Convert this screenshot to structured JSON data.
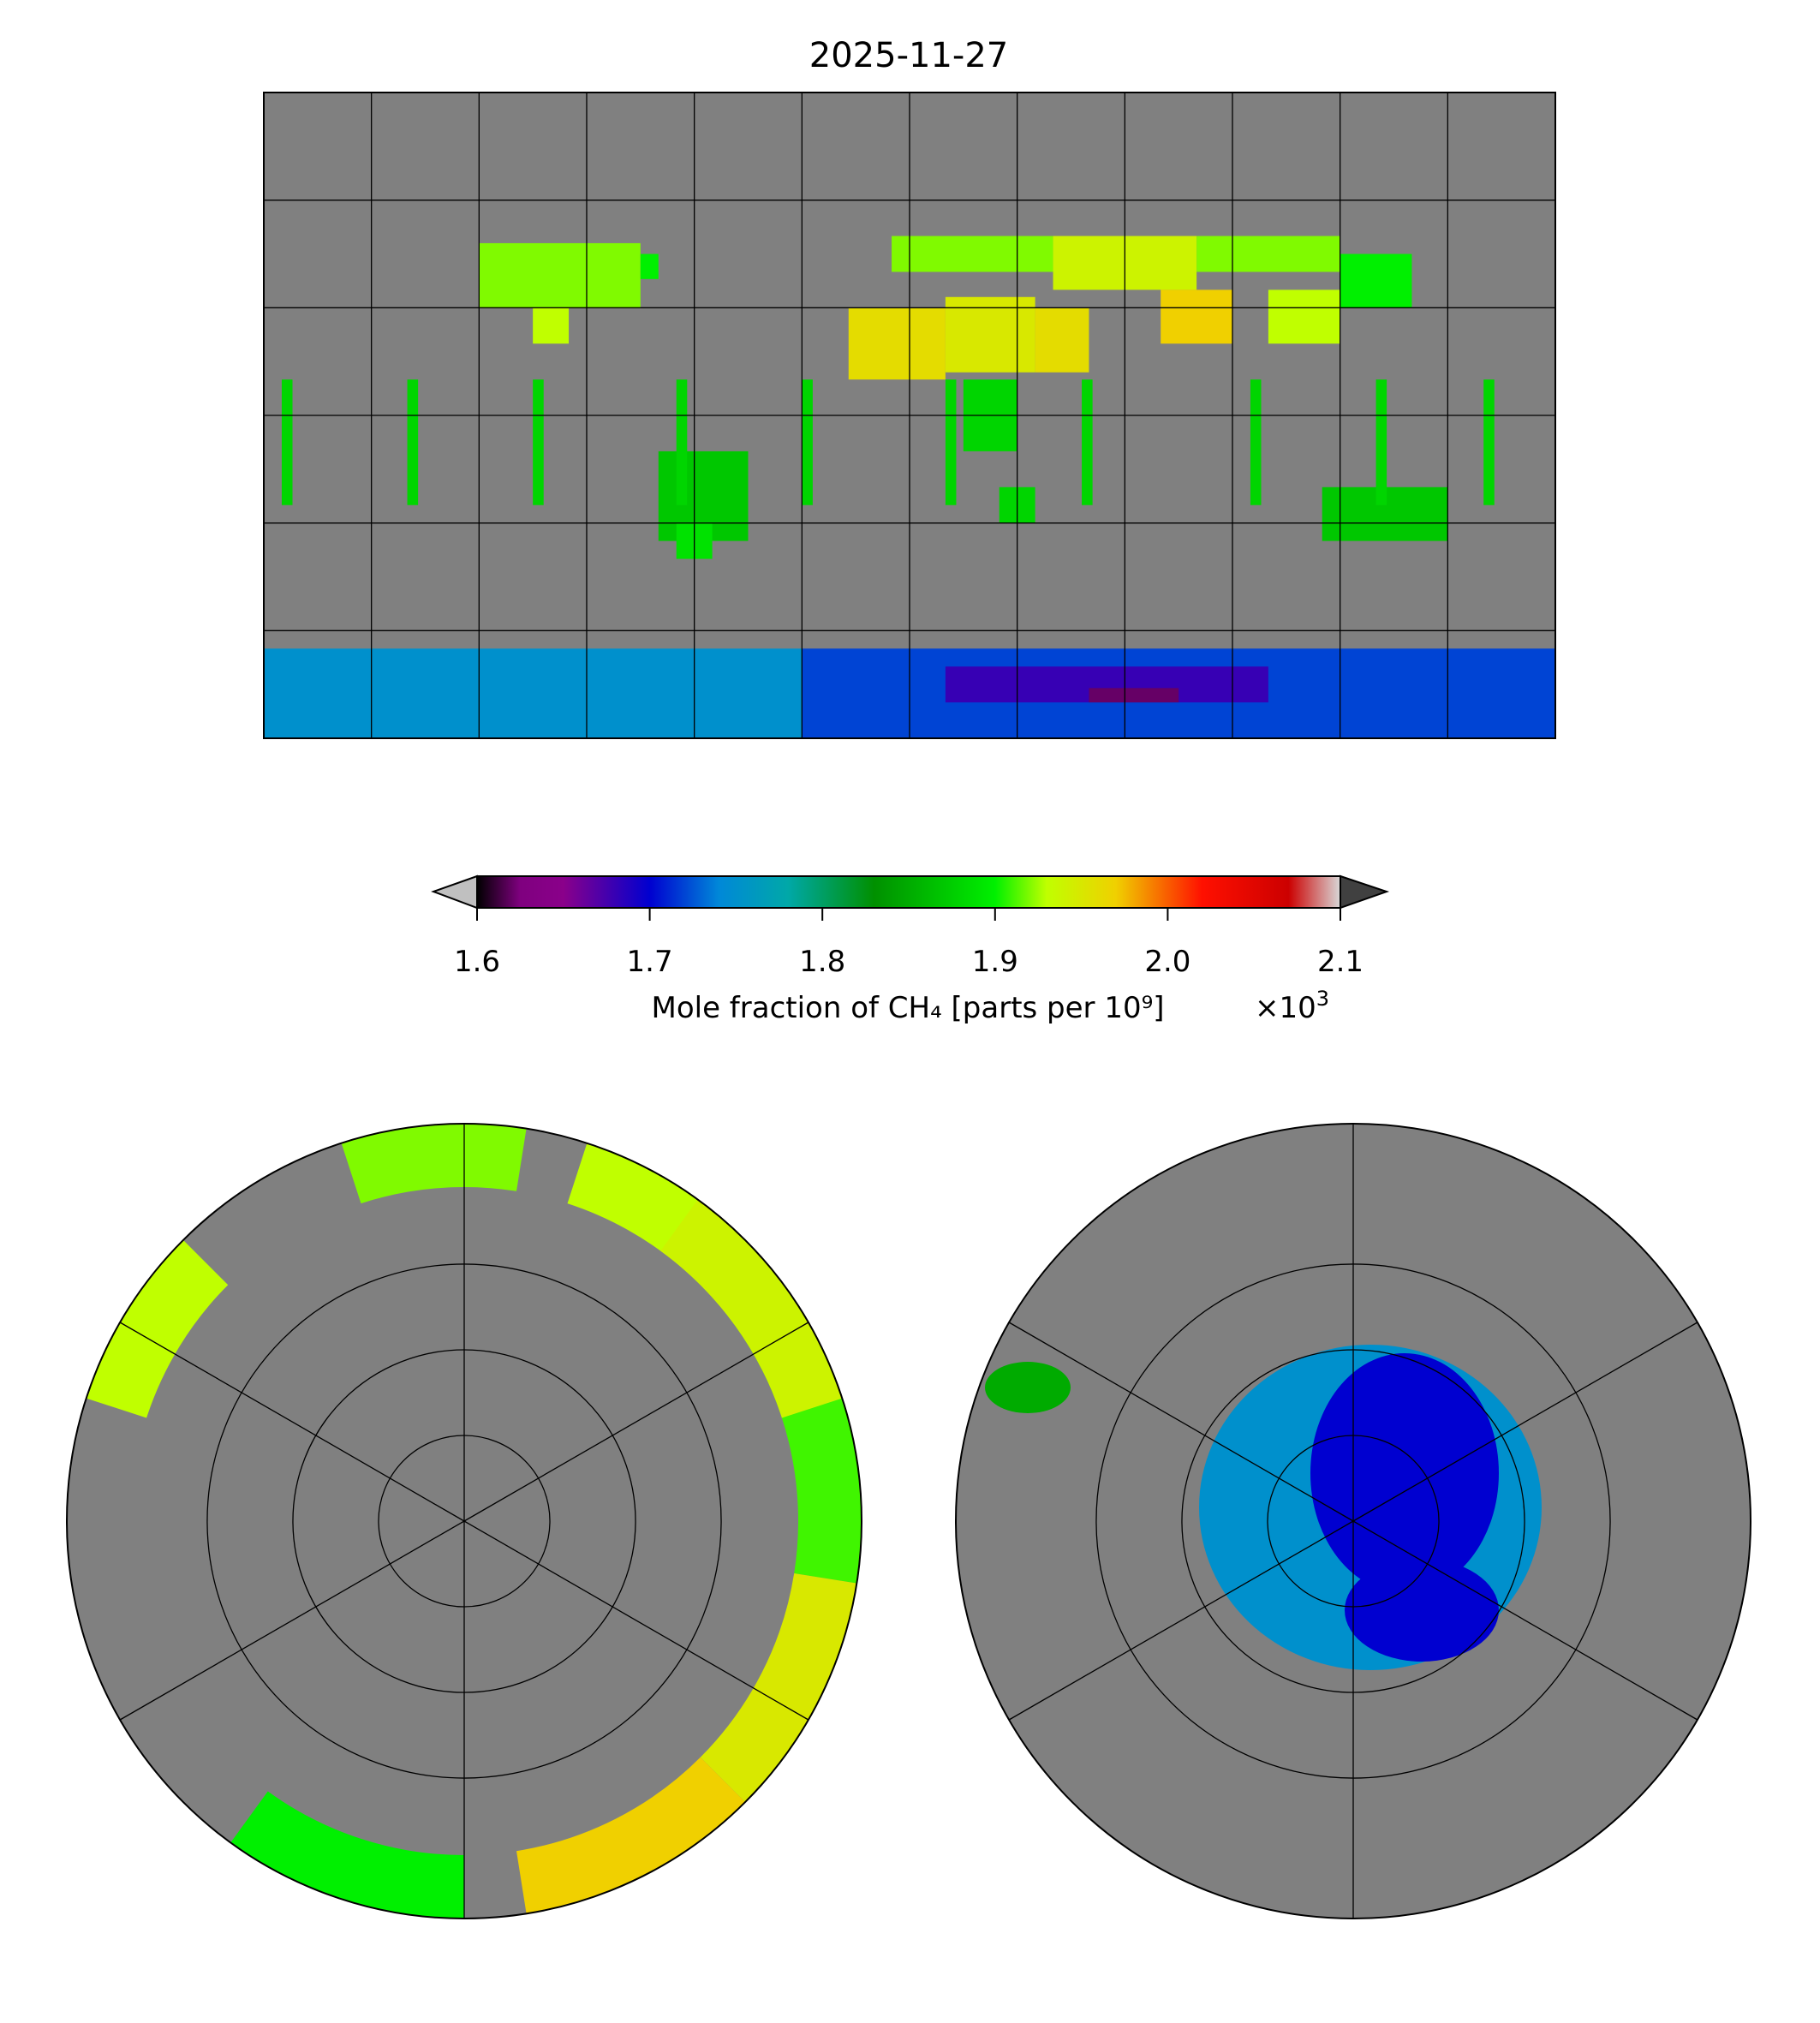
{
  "chart_data": {
    "type": "heatmap",
    "title": "2025-11-27",
    "variable": "Mole fraction of CH₄ [parts per 10⁹]",
    "colorbar": {
      "label": "Mole fraction of CH₄ [parts per 10⁹]",
      "multiplier": "×10",
      "multiplier_exp": "3",
      "ticks": [
        1.6,
        1.7,
        1.8,
        1.9,
        2.0,
        2.1
      ],
      "tick_labels": [
        "1.6",
        "1.7",
        "1.8",
        "1.9",
        "2.0",
        "2.1"
      ],
      "range": [
        1.6,
        2.1
      ],
      "extend": "both",
      "under_color": "#c0c0c0",
      "over_color": "#404040",
      "colormap_stops": [
        {
          "v": 1.6,
          "c": "#000000"
        },
        {
          "v": 1.625,
          "c": "#7f007f"
        },
        {
          "v": 1.65,
          "c": "#8a008a"
        },
        {
          "v": 1.7,
          "c": "#0000d0"
        },
        {
          "v": 1.74,
          "c": "#0088d8"
        },
        {
          "v": 1.78,
          "c": "#00a8a8"
        },
        {
          "v": 1.83,
          "c": "#009000"
        },
        {
          "v": 1.9,
          "c": "#00f000"
        },
        {
          "v": 1.93,
          "c": "#c0ff00"
        },
        {
          "v": 1.97,
          "c": "#f0d000"
        },
        {
          "v": 2.02,
          "c": "#ff1000"
        },
        {
          "v": 2.07,
          "c": "#cc0000"
        },
        {
          "v": 2.1,
          "c": "#d8d8d8"
        }
      ]
    },
    "panels": [
      {
        "name": "global",
        "projection": "plate-carree",
        "lon_grid_step": 30,
        "lat_grid_step": 30
      },
      {
        "name": "north-polar",
        "projection": "north-polar-stereographic",
        "lat_circles": [
          30,
          50,
          70
        ],
        "lon_lines_step": 60
      },
      {
        "name": "south-polar",
        "projection": "south-polar-stereographic",
        "lat_circles": [
          -30,
          -50,
          -70
        ],
        "lon_lines_step": 60
      }
    ],
    "missing_color": "#808080"
  }
}
